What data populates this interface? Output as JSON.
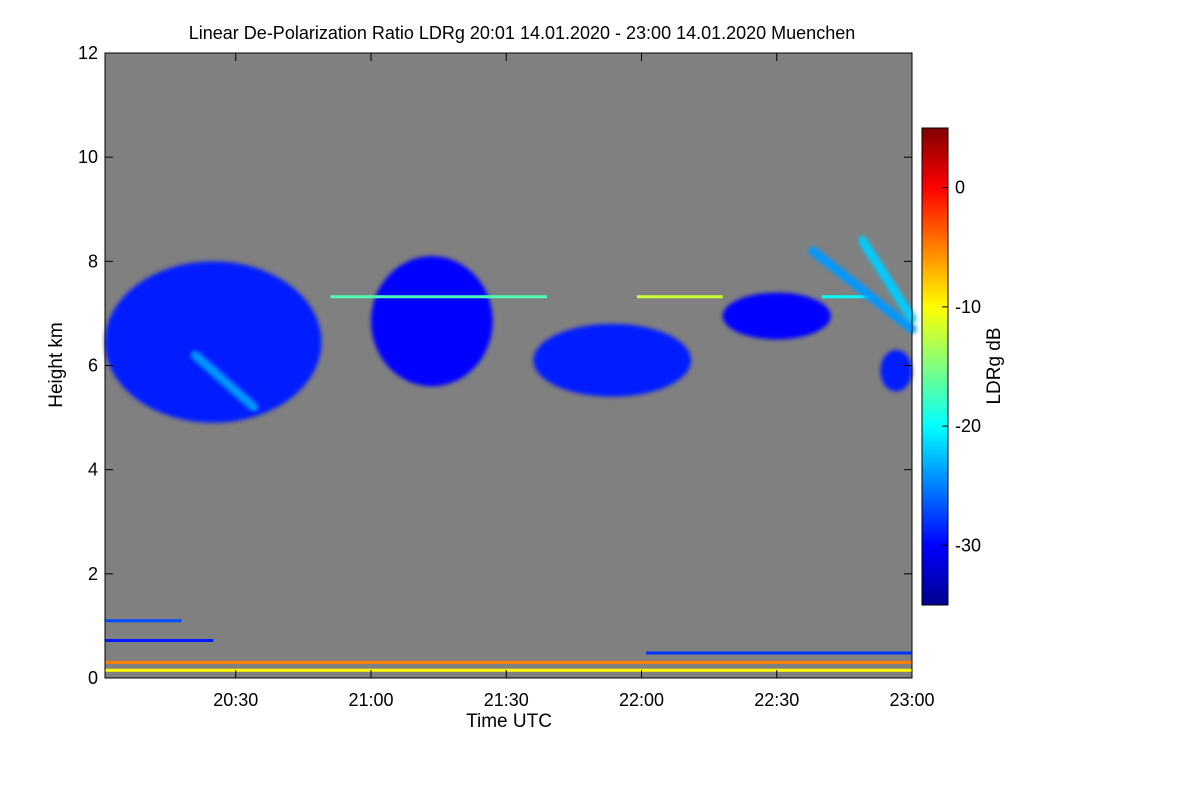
{
  "chart_data": {
    "type": "heatmap",
    "title": "Linear De-Polarization Ratio LDRg   20:01 14.01.2020 - 23:00 14.01.2020 Muenchen",
    "xlabel": "Time UTC",
    "ylabel": "Height km",
    "x_range_minutes": [
      0,
      179
    ],
    "x_ticks": [
      {
        "label": "20:30",
        "minute": 29
      },
      {
        "label": "21:00",
        "minute": 59
      },
      {
        "label": "21:30",
        "minute": 89
      },
      {
        "label": "22:00",
        "minute": 119
      },
      {
        "label": "22:30",
        "minute": 149
      },
      {
        "label": "23:00",
        "minute": 179
      }
    ],
    "ylim": [
      0,
      12
    ],
    "y_ticks": [
      0,
      2,
      4,
      6,
      8,
      10,
      12
    ],
    "colorbar": {
      "label": "LDRg dB",
      "range": [
        -35,
        5
      ],
      "ticks": [
        0,
        -10,
        -20,
        -30
      ],
      "colors": [
        "#00008f",
        "#0000ff",
        "#0080ff",
        "#00ffff",
        "#80ff80",
        "#ffff00",
        "#ff8000",
        "#ff0000",
        "#800000"
      ]
    },
    "background_color": "#808080",
    "features": [
      {
        "name": "main-cloud-layer",
        "type": "blob",
        "t0": 0,
        "t1": 48,
        "h0": 4.9,
        "h1": 8.0,
        "ldr": -29
      },
      {
        "name": "fall-streak",
        "type": "streak",
        "t0": 20,
        "t1": 33,
        "h0": 6.2,
        "h1": 5.2,
        "ldr": -24
      },
      {
        "name": "cloud-patch-2106",
        "type": "blob",
        "t0": 59,
        "t1": 86,
        "h0": 5.6,
        "h1": 8.1,
        "ldr": -30
      },
      {
        "name": "cloud-patch-2200",
        "type": "blob",
        "t0": 95,
        "t1": 130,
        "h0": 5.4,
        "h1": 6.8,
        "ldr": -29
      },
      {
        "name": "cloud-patch-2225",
        "type": "blob",
        "t0": 137,
        "t1": 161,
        "h0": 6.5,
        "h1": 7.4,
        "ldr": -30
      },
      {
        "name": "thin-layer-7.3km-a",
        "type": "line",
        "t0": 50,
        "t1": 98,
        "h0": 7.32,
        "h1": 7.32,
        "ldr": -17
      },
      {
        "name": "thin-layer-7.3km-b",
        "type": "line",
        "t0": 118,
        "t1": 137,
        "h0": 7.32,
        "h1": 7.32,
        "ldr": -12
      },
      {
        "name": "thin-layer-7.3km-c",
        "type": "line",
        "t0": 159,
        "t1": 170,
        "h0": 7.32,
        "h1": 7.32,
        "ldr": -20
      },
      {
        "name": "ice-streak-1",
        "type": "streak",
        "t0": 157,
        "t1": 179,
        "h0": 8.2,
        "h1": 6.7,
        "ldr": -24
      },
      {
        "name": "ice-streak-2",
        "type": "streak",
        "t0": 168,
        "t1": 179,
        "h0": 8.4,
        "h1": 6.9,
        "ldr": -22
      },
      {
        "name": "lower-patch-2250",
        "type": "blob",
        "t0": 172,
        "t1": 179,
        "h0": 5.5,
        "h1": 6.3,
        "ldr": -29
      },
      {
        "name": "boundary-layer-orange",
        "type": "line",
        "t0": 0,
        "t1": 179,
        "h0": 0.3,
        "h1": 0.3,
        "ldr": -5
      },
      {
        "name": "boundary-layer-yellow",
        "type": "line",
        "t0": 0,
        "t1": 179,
        "h0": 0.15,
        "h1": 0.15,
        "ldr": -10
      },
      {
        "name": "aerosol-layer-1.1km",
        "type": "line",
        "t0": 0,
        "t1": 17,
        "h0": 1.1,
        "h1": 1.1,
        "ldr": -27
      },
      {
        "name": "aerosol-layer-0.7km",
        "type": "line",
        "t0": 0,
        "t1": 24,
        "h0": 0.72,
        "h1": 0.72,
        "ldr": -29
      },
      {
        "name": "aerosol-layer-0.5km",
        "type": "line",
        "t0": 120,
        "t1": 179,
        "h0": 0.48,
        "h1": 0.48,
        "ldr": -28
      }
    ]
  }
}
